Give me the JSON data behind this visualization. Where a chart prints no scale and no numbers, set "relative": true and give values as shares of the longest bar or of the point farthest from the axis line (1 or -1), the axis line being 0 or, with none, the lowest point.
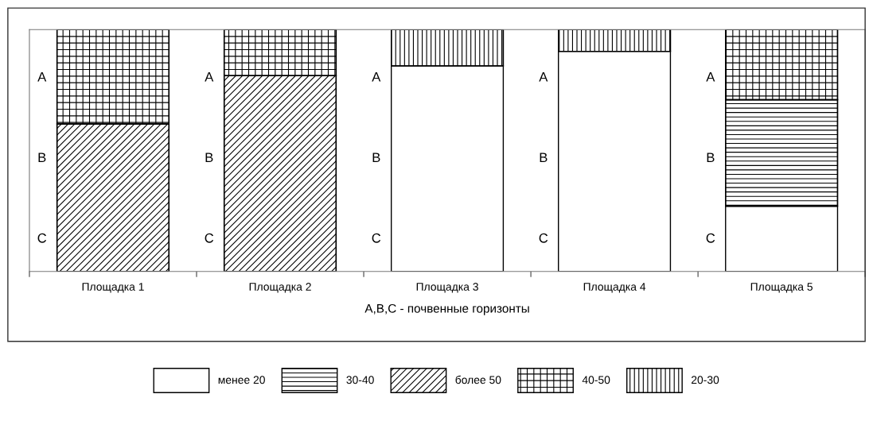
{
  "chart_data": {
    "type": "bar",
    "stacked": true,
    "relative": true,
    "xlabel": "A,B,C - почвенные горизонты",
    "categories": [
      "Площадка 1",
      "Площадка 2",
      "Площадка 3",
      "Площадка 4",
      "Площадка 5"
    ],
    "series": [
      {
        "name": "менее 20",
        "color": "#ffffff",
        "values": [
          null,
          null,
          0.85,
          0.91,
          0.27
        ]
      },
      {
        "name": "30-40",
        "color": "#000000",
        "values": [
          null,
          null,
          null,
          null,
          0.44
        ]
      },
      {
        "name": "более 50",
        "color": "#000000",
        "values": [
          0.61,
          0.81,
          null,
          null,
          null
        ]
      },
      {
        "name": "40-50",
        "color": "#000000",
        "values": [
          0.39,
          0.19,
          null,
          null,
          0.29
        ]
      },
      {
        "name": "20-30",
        "color": "#000000",
        "values": [
          null,
          null,
          0.15,
          0.09,
          null
        ]
      }
    ],
    "annotations": [
      "A",
      "B",
      "C",
      "A",
      "B",
      "C",
      "A",
      "B",
      "C",
      "A",
      "B",
      "C",
      "A",
      "B",
      "C"
    ],
    "legend": "bottom"
  }
}
